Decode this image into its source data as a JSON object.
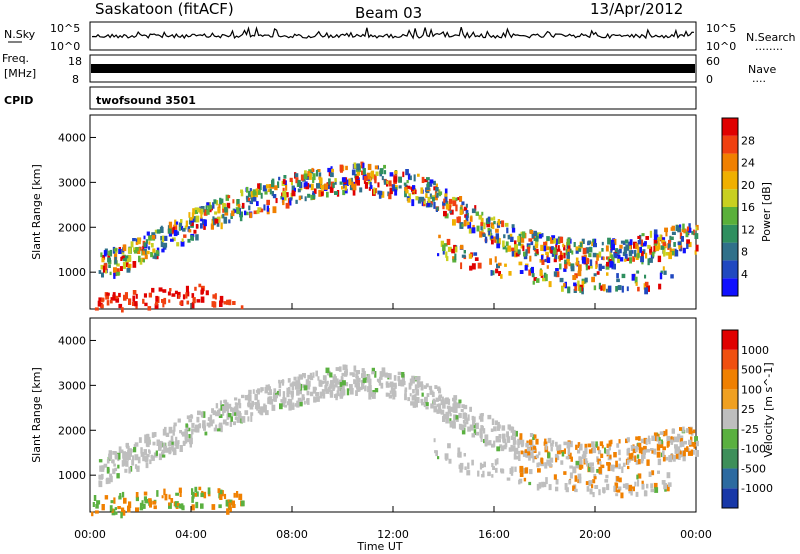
{
  "header": {
    "station": "Saskatoon (fitACF)",
    "beam": "Beam 03",
    "date": "13/Apr/2012"
  },
  "panels": {
    "nsky": {
      "left_label": "N.Sky",
      "right_label": "N.Search",
      "right_dots": "........",
      "left_ticks": [
        "10^5",
        "10^0"
      ],
      "right_ticks": [
        "10^5",
        "10^0"
      ]
    },
    "freq": {
      "left_label_1": "Freq.",
      "left_label_2": "[MHz]",
      "right_label": "Nave",
      "right_dots": "....",
      "left_ticks": [
        "18",
        "8"
      ],
      "right_ticks": [
        "60",
        "0"
      ]
    },
    "cpid": {
      "label": "CPID",
      "text": "twofsound 3501"
    }
  },
  "chart_data": [
    {
      "type": "heatmap",
      "title": "",
      "xlabel": "",
      "ylabel": "Slant Range [km]",
      "x_range_hours": [
        0,
        24
      ],
      "ylim": [
        180,
        4500
      ],
      "y_ticks": [
        1000,
        2000,
        3000,
        4000
      ],
      "colorbar_label": "Power [dB]",
      "colorbar_ticks": [
        "28",
        "24",
        "20",
        "16",
        "12",
        "8",
        "4"
      ],
      "colorbar_colors": [
        "#1010ff",
        "#2048c0",
        "#30708a",
        "#2f8f5f",
        "#5ab03a",
        "#c8d020",
        "#f0b000",
        "#f08000",
        "#f04010",
        "#e00000"
      ],
      "scatter_bands": [
        {
          "label": "main",
          "points": [
            [
              0.3,
              1150
            ],
            [
              1,
              1300
            ],
            [
              2,
              1550
            ],
            [
              3,
              1800
            ],
            [
              4,
              2100
            ],
            [
              5,
              2350
            ],
            [
              6,
              2550
            ],
            [
              7,
              2750
            ],
            [
              8,
              2900
            ],
            [
              9,
              3050
            ],
            [
              10,
              3150
            ],
            [
              11,
              3150
            ],
            [
              12,
              3050
            ],
            [
              13,
              2900
            ],
            [
              14,
              2600
            ],
            [
              15,
              2250
            ],
            [
              16,
              1950
            ],
            [
              17,
              1700
            ],
            [
              18,
              1550
            ],
            [
              19,
              1450
            ],
            [
              20,
              1450
            ],
            [
              21,
              1500
            ],
            [
              22,
              1600
            ],
            [
              23,
              1750
            ],
            [
              24,
              1800
            ]
          ]
        },
        {
          "label": "lower",
          "points": [
            [
              13.5,
              1700
            ],
            [
              15,
              1300
            ],
            [
              17,
              1050
            ],
            [
              19,
              850
            ],
            [
              21,
              800
            ],
            [
              23,
              950
            ]
          ]
        },
        {
          "label": "near",
          "points": [
            [
              0,
              400
            ],
            [
              1,
              400
            ],
            [
              2,
              450
            ],
            [
              3,
              500
            ],
            [
              4,
              550
            ],
            [
              5,
              500
            ],
            [
              6,
              450
            ]
          ]
        }
      ]
    },
    {
      "type": "heatmap",
      "title": "",
      "xlabel": "Time UT",
      "ylabel": "Slant Range [km]",
      "x_range_hours": [
        0,
        24
      ],
      "ylim": [
        180,
        4500
      ],
      "y_ticks": [
        1000,
        2000,
        3000,
        4000
      ],
      "x_ticks": [
        "00:00",
        "04:00",
        "08:00",
        "12:00",
        "16:00",
        "20:00",
        "00:00"
      ],
      "colorbar_label": "Velocity [m s^-1]",
      "colorbar_ticks": [
        "1000",
        "500",
        "100",
        "25",
        "-25",
        "-100",
        "-500",
        "-1000"
      ],
      "colorbar_colors": [
        "#1838a8",
        "#2c6aa0",
        "#3e8f5a",
        "#5ab040",
        "#bebebe",
        "#f0a020",
        "#f08000",
        "#f05010",
        "#e00000"
      ]
    }
  ]
}
